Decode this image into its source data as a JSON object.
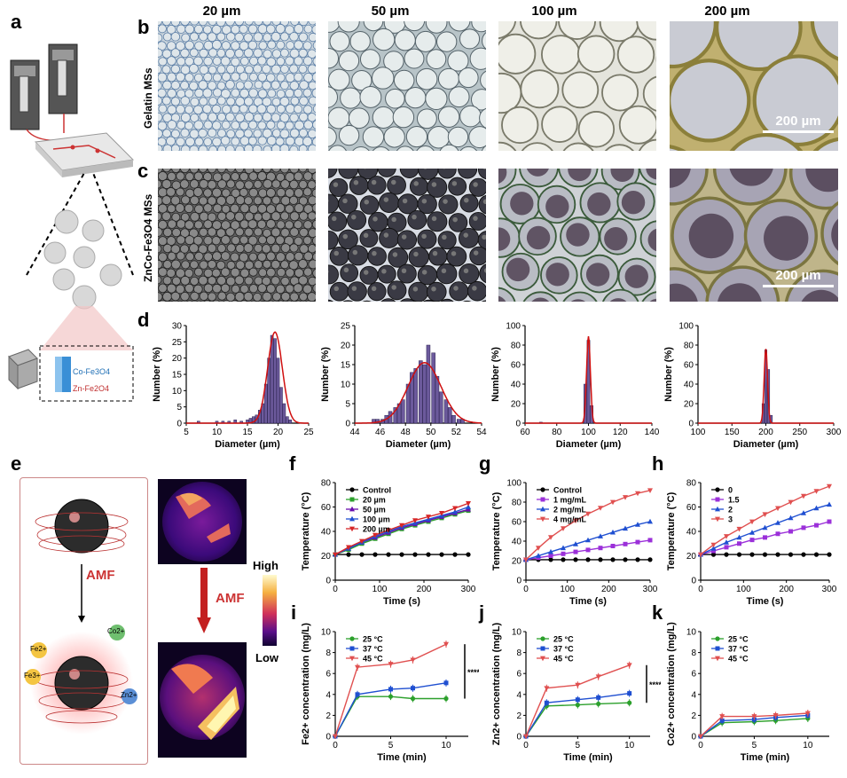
{
  "panel_letters": {
    "a": "a",
    "b": "b",
    "c": "c",
    "d": "d",
    "e": "e",
    "f": "f",
    "g": "g",
    "h": "h",
    "i": "i",
    "j": "j",
    "k": "k"
  },
  "columns": [
    "20 µm",
    "50 µm",
    "100 µm",
    "200 µm"
  ],
  "row_labels": {
    "gelatin": "Gelatin MSs",
    "znco": "ZnCo-Fe3O4 MSs"
  },
  "scale_bar": "200 µm",
  "schematic": {
    "co_label": "Co-Fe3O4",
    "zn_label": "Zn-Fe2O4"
  },
  "panel_e": {
    "amf": "AMF",
    "high": "High",
    "low": "Low",
    "ions": [
      "Fe2+",
      "Fe3+",
      "Co2+",
      "Zn2+"
    ]
  },
  "chart_data": [
    {
      "id": "d1",
      "type": "bar",
      "xlabel": "Diameter (µm)",
      "ylabel": "Number (%)",
      "xlim": [
        5,
        25
      ],
      "ylim": [
        0,
        30
      ],
      "xticks": [
        5,
        10,
        15,
        20,
        25
      ],
      "yticks": [
        0,
        5,
        10,
        15,
        20,
        25,
        30
      ],
      "x": [
        7,
        10,
        11,
        12,
        13,
        14,
        15,
        15.5,
        16,
        16.5,
        17,
        17.5,
        18,
        18.5,
        19,
        19.5,
        20,
        20.5,
        21,
        21.5,
        22
      ],
      "values": [
        0.6,
        0.6,
        0.6,
        0.6,
        1,
        0.6,
        1,
        1.5,
        2,
        2.5,
        4,
        6,
        12,
        20,
        27,
        26,
        20,
        11,
        6,
        2,
        1
      ],
      "fit_mean": 19.5,
      "fit_sd": 1.2,
      "fit_peak": 28
    },
    {
      "id": "d2",
      "type": "bar",
      "xlabel": "Diameter (µm)",
      "ylabel": "Number (%)",
      "xlim": [
        44,
        54
      ],
      "ylim": [
        0,
        25
      ],
      "xticks": [
        44,
        46,
        48,
        50,
        52,
        54
      ],
      "yticks": [
        0,
        5,
        10,
        15,
        20,
        25
      ],
      "x": [
        45.5,
        45.8,
        46.2,
        46.5,
        46.8,
        47.2,
        47.5,
        47.8,
        48.2,
        48.5,
        48.8,
        49.2,
        49.5,
        49.8,
        50.2,
        50.5,
        50.8,
        51.2,
        51.5,
        51.8,
        52.2,
        52.5
      ],
      "values": [
        1,
        1,
        1,
        2,
        3,
        4,
        5,
        6,
        10,
        13,
        14,
        16,
        15,
        20,
        18,
        12,
        8,
        6,
        4,
        2,
        1,
        1
      ],
      "fit_mean": 49.5,
      "fit_sd": 1.3,
      "fit_peak": 15.5
    },
    {
      "id": "d3",
      "type": "bar",
      "xlabel": "Diameter (µm)",
      "ylabel": "Number (%)",
      "xlim": [
        60,
        140
      ],
      "ylim": [
        0,
        100
      ],
      "xticks": [
        60,
        80,
        100,
        120,
        140
      ],
      "yticks": [
        0,
        20,
        40,
        60,
        80,
        100
      ],
      "x": [
        70,
        98,
        100,
        102
      ],
      "values": [
        1,
        40,
        85,
        18
      ],
      "fit_mean": 100,
      "fit_sd": 1.2,
      "fit_peak": 89
    },
    {
      "id": "d4",
      "type": "bar",
      "xlabel": "Diameter (µm)",
      "ylabel": "Number (%)",
      "xlim": [
        100,
        300
      ],
      "ylim": [
        0,
        100
      ],
      "xticks": [
        100,
        150,
        200,
        250,
        300
      ],
      "yticks": [
        0,
        20,
        40,
        60,
        80,
        100
      ],
      "x": [
        196,
        200,
        204,
        208
      ],
      "values": [
        20,
        75,
        55,
        8
      ],
      "fit_mean": 200,
      "fit_sd": 2.5,
      "fit_peak": 76
    },
    {
      "id": "f",
      "type": "line",
      "xlabel": "Time (s)",
      "ylabel": "Temperature (°C)",
      "xlim": [
        0,
        300
      ],
      "ylim": [
        0,
        80
      ],
      "xticks": [
        0,
        100,
        200,
        300
      ],
      "yticks": [
        0,
        20,
        40,
        60,
        80
      ],
      "x": [
        0,
        30,
        60,
        90,
        120,
        150,
        180,
        210,
        240,
        270,
        300
      ],
      "series": [
        {
          "name": "Control",
          "color": "#000000",
          "marker": "circle",
          "values": [
            21,
            21,
            21,
            21,
            21,
            21,
            21,
            21,
            21,
            21,
            21
          ]
        },
        {
          "name": "20 µm",
          "color": "#2ca02c",
          "marker": "square",
          "values": [
            21,
            25,
            30,
            34,
            38,
            42,
            45,
            48,
            51,
            54,
            57
          ]
        },
        {
          "name": "50 µm",
          "color": "#6a0dad",
          "marker": "triangle",
          "values": [
            21,
            26,
            31,
            35,
            39,
            43,
            46,
            49,
            52,
            55,
            58
          ]
        },
        {
          "name": "100 µm",
          "color": "#1f4fd1",
          "marker": "triangle",
          "values": [
            21,
            26,
            31,
            36,
            40,
            44,
            47,
            50,
            53,
            56,
            60
          ]
        },
        {
          "name": "200 µm",
          "color": "#d62728",
          "marker": "tri-down",
          "values": [
            21,
            27,
            32,
            37,
            41,
            45,
            49,
            52,
            55,
            59,
            63
          ]
        }
      ]
    },
    {
      "id": "g",
      "type": "line",
      "xlabel": "Time (s)",
      "ylabel": "Temperature (°C)",
      "xlim": [
        0,
        300
      ],
      "ylim": [
        0,
        100
      ],
      "xticks": [
        0,
        100,
        200,
        300
      ],
      "yticks": [
        0,
        20,
        40,
        60,
        80,
        100
      ],
      "x": [
        0,
        30,
        60,
        90,
        120,
        150,
        180,
        210,
        240,
        270,
        300
      ],
      "series": [
        {
          "name": "Control",
          "color": "#000000",
          "marker": "circle",
          "values": [
            21,
            21,
            21,
            21,
            21,
            21,
            21,
            21,
            21,
            21,
            21
          ]
        },
        {
          "name": "1 mg/mL",
          "color": "#9b30d9",
          "marker": "square",
          "values": [
            21,
            23,
            25,
            27,
            29,
            31,
            33,
            35,
            37,
            39,
            41
          ]
        },
        {
          "name": "2 mg/mL",
          "color": "#1f4fd1",
          "marker": "triangle",
          "values": [
            21,
            25,
            29,
            33,
            37,
            41,
            45,
            49,
            53,
            57,
            60
          ]
        },
        {
          "name": "4 mg/mL",
          "color": "#e05050",
          "marker": "tri-down",
          "values": [
            21,
            33,
            44,
            53,
            61,
            68,
            74,
            80,
            85,
            89,
            92
          ]
        }
      ]
    },
    {
      "id": "h",
      "type": "line",
      "xlabel": "Time (s)",
      "ylabel": "Temperature (°C)",
      "xlim": [
        0,
        300
      ],
      "ylim": [
        0,
        80
      ],
      "xticks": [
        0,
        100,
        200,
        300
      ],
      "yticks": [
        0,
        20,
        40,
        60,
        80
      ],
      "x": [
        0,
        30,
        60,
        90,
        120,
        150,
        180,
        210,
        240,
        270,
        300
      ],
      "series": [
        {
          "name": "0",
          "color": "#000000",
          "marker": "circle",
          "values": [
            21,
            21,
            21,
            21,
            21,
            21,
            21,
            21,
            21,
            21,
            21
          ]
        },
        {
          "name": "1.5",
          "color": "#9b30d9",
          "marker": "square",
          "values": [
            21,
            24,
            27,
            30,
            33,
            35,
            38,
            40,
            43,
            45,
            48
          ]
        },
        {
          "name": "2",
          "color": "#1f4fd1",
          "marker": "triangle",
          "values": [
            21,
            26,
            31,
            35,
            39,
            43,
            47,
            51,
            55,
            59,
            62
          ]
        },
        {
          "name": "3",
          "color": "#e05050",
          "marker": "tri-down",
          "values": [
            21,
            29,
            36,
            42,
            48,
            54,
            59,
            64,
            69,
            73,
            77
          ]
        }
      ]
    },
    {
      "id": "i",
      "type": "line",
      "xlabel": "Time (min)",
      "ylabel": "Fe2+ concentration (mg/L)",
      "xlim": [
        0,
        12
      ],
      "ylim": [
        0,
        10
      ],
      "xticks": [
        0,
        5,
        10
      ],
      "yticks": [
        0,
        2,
        4,
        6,
        8,
        10
      ],
      "x": [
        0,
        2,
        5,
        7,
        10
      ],
      "significance": "****",
      "series": [
        {
          "name": "25 °C",
          "color": "#2ca02c",
          "marker": "circle",
          "values": [
            0,
            3.8,
            3.8,
            3.6,
            3.6
          ]
        },
        {
          "name": "37 °C",
          "color": "#1f4fd1",
          "marker": "square",
          "values": [
            0,
            4.0,
            4.5,
            4.6,
            5.1
          ]
        },
        {
          "name": "45 °C",
          "color": "#e05050",
          "marker": "tri-down",
          "values": [
            0,
            6.6,
            6.9,
            7.3,
            8.8
          ]
        }
      ]
    },
    {
      "id": "j",
      "type": "line",
      "xlabel": "Time (min)",
      "ylabel": "Zn2+ concentration (mg/L)",
      "xlim": [
        0,
        12
      ],
      "ylim": [
        0,
        10
      ],
      "xticks": [
        0,
        5,
        10
      ],
      "yticks": [
        0,
        2,
        4,
        6,
        8,
        10
      ],
      "x": [
        0,
        2,
        5,
        7,
        10
      ],
      "significance": "****",
      "series": [
        {
          "name": "25 °C",
          "color": "#2ca02c",
          "marker": "circle",
          "values": [
            0,
            2.9,
            3.0,
            3.1,
            3.2
          ]
        },
        {
          "name": "37 °C",
          "color": "#1f4fd1",
          "marker": "square",
          "values": [
            0,
            3.2,
            3.5,
            3.7,
            4.1
          ]
        },
        {
          "name": "45 °C",
          "color": "#e05050",
          "marker": "tri-down",
          "values": [
            0,
            4.6,
            4.9,
            5.7,
            6.8
          ]
        }
      ]
    },
    {
      "id": "k",
      "type": "line",
      "xlabel": "Time (min)",
      "ylabel": "Co2+ concentration (mg/L)",
      "xlim": [
        0,
        12
      ],
      "ylim": [
        0,
        10
      ],
      "xticks": [
        0,
        5,
        10
      ],
      "yticks": [
        0,
        2,
        4,
        6,
        8,
        10
      ],
      "x": [
        0,
        2,
        5,
        7,
        10
      ],
      "series": [
        {
          "name": "25 °C",
          "color": "#2ca02c",
          "marker": "circle",
          "values": [
            0,
            1.3,
            1.4,
            1.5,
            1.7
          ]
        },
        {
          "name": "37 °C",
          "color": "#1f4fd1",
          "marker": "square",
          "values": [
            0,
            1.5,
            1.6,
            1.8,
            2.0
          ]
        },
        {
          "name": "45 °C",
          "color": "#e05050",
          "marker": "tri-down",
          "values": [
            0,
            1.9,
            1.9,
            2.0,
            2.2
          ]
        }
      ]
    }
  ]
}
